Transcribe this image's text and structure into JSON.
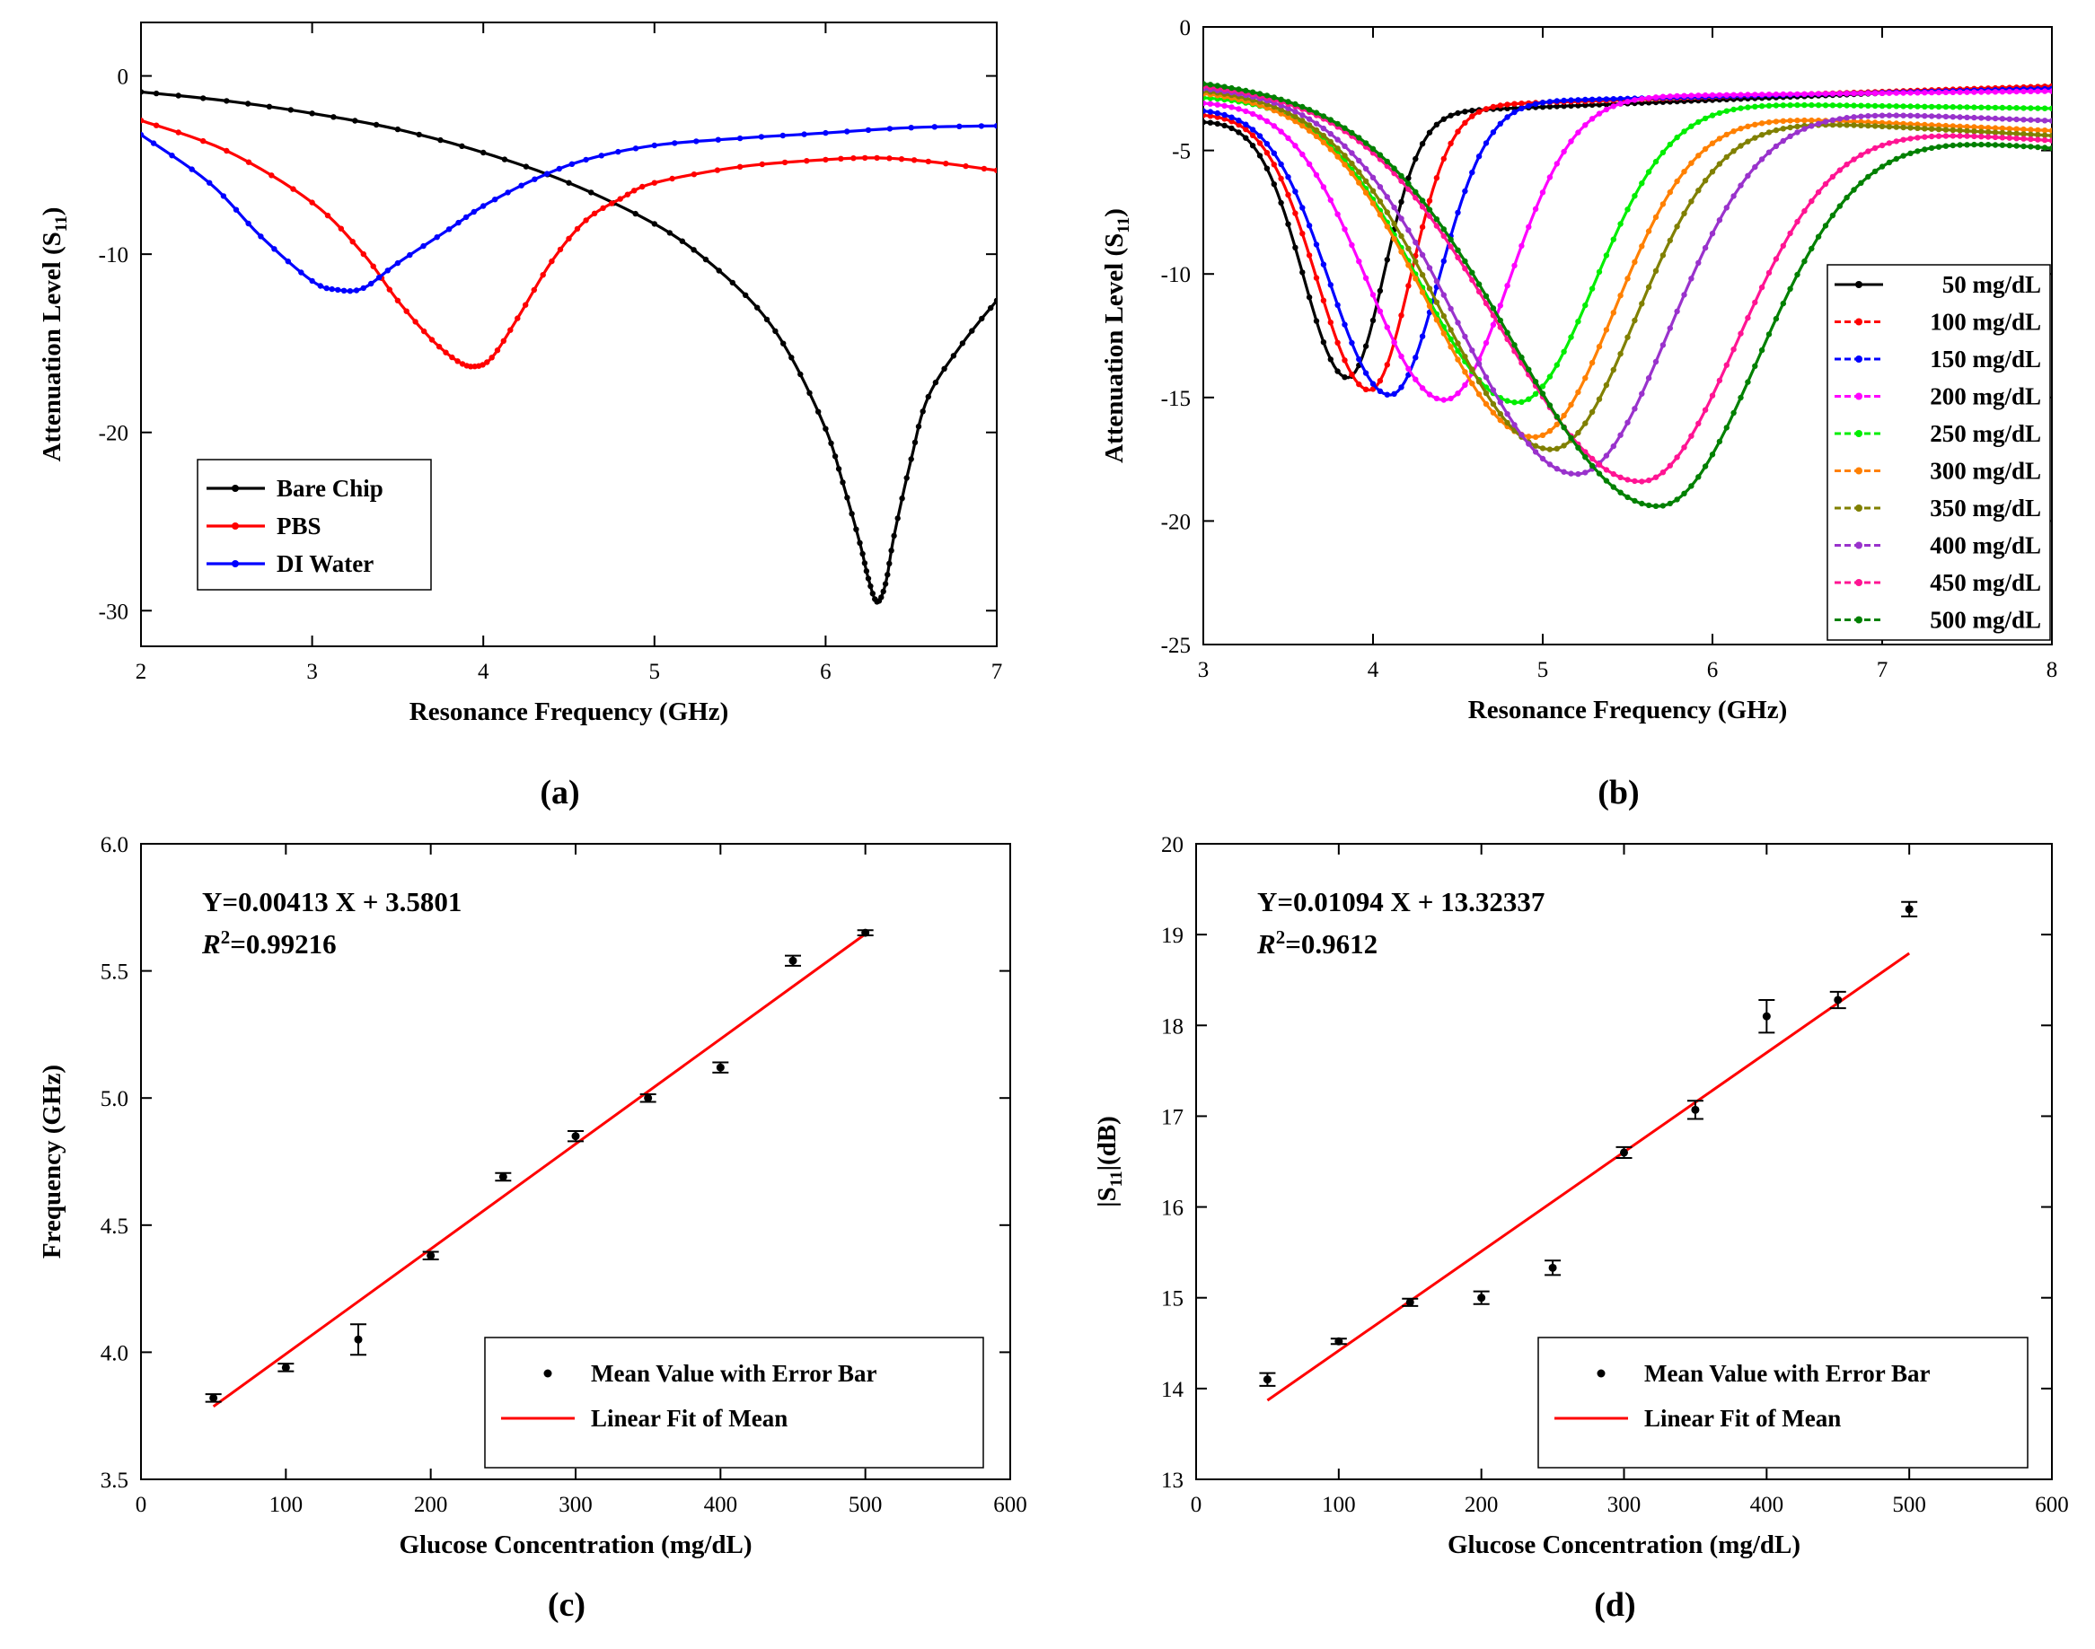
{
  "chart_data": [
    {
      "id": "a",
      "type": "line",
      "panel_label": "(a)",
      "xlabel": "Resonance Frequency (GHz)",
      "ylabel": "Attenuation Level (S",
      "ylabel_sub": "11",
      "ylabel_close": ")",
      "xlim": [
        2,
        7
      ],
      "ylim": [
        -32,
        3
      ],
      "xticks": [
        2,
        3,
        4,
        5,
        6,
        7
      ],
      "yticks": [
        0,
        -10,
        -20,
        -30
      ],
      "legend_position": "bottom-left",
      "series": [
        {
          "name": "Bare Chip",
          "color": "#000000",
          "x": [
            2.0,
            2.5,
            3.0,
            3.5,
            4.0,
            4.5,
            5.0,
            5.3,
            5.6,
            5.8,
            6.0,
            6.1,
            6.2,
            6.25,
            6.3,
            6.35,
            6.4,
            6.5,
            6.6,
            6.8,
            7.0
          ],
          "y": [
            -0.9,
            -1.4,
            -2.1,
            -3.0,
            -4.3,
            -6.0,
            -8.3,
            -10.3,
            -13.0,
            -15.8,
            -19.8,
            -22.8,
            -26.2,
            -28.2,
            -29.5,
            -28.5,
            -25.8,
            -21.5,
            -18.0,
            -15.0,
            -12.6
          ]
        },
        {
          "name": "PBS",
          "color": "#ff0000",
          "x": [
            2.0,
            2.5,
            3.0,
            3.3,
            3.5,
            3.7,
            3.85,
            3.95,
            4.05,
            4.2,
            4.4,
            4.6,
            4.8,
            5.0,
            5.5,
            6.0,
            6.3,
            6.6,
            7.0
          ],
          "y": [
            -2.5,
            -4.2,
            -7.1,
            -10.0,
            -12.6,
            -14.8,
            -16.0,
            -16.3,
            -15.8,
            -13.6,
            -10.4,
            -8.1,
            -6.9,
            -6.0,
            -5.1,
            -4.7,
            -4.6,
            -4.8,
            -5.3
          ]
        },
        {
          "name": "DI Water",
          "color": "#0000ff",
          "x": [
            2.0,
            2.4,
            2.7,
            3.0,
            3.15,
            3.3,
            3.5,
            3.8,
            4.0,
            4.3,
            4.6,
            5.0,
            5.5,
            6.0,
            6.5,
            7.0
          ],
          "y": [
            -3.3,
            -6.0,
            -9.0,
            -11.5,
            -12.0,
            -11.9,
            -10.5,
            -8.6,
            -7.3,
            -5.8,
            -4.7,
            -3.9,
            -3.5,
            -3.2,
            -2.9,
            -2.8
          ]
        }
      ]
    },
    {
      "id": "b",
      "type": "line",
      "panel_label": "(b)",
      "xlabel": "Resonance Frequency (GHz)",
      "ylabel": "Attenuation Level (S",
      "ylabel_sub": "11",
      "ylabel_close": ")",
      "xlim": [
        3,
        8
      ],
      "ylim": [
        -25,
        0
      ],
      "xticks": [
        3,
        4,
        5,
        6,
        7,
        8
      ],
      "yticks": [
        0,
        -5,
        -10,
        -15,
        -20,
        -25
      ],
      "legend_position": "right",
      "series": [
        {
          "name": "50 mg/dL",
          "color": "#000000",
          "dip_x": 3.85,
          "dip_y": -14.2,
          "start_y": -3.8,
          "end_y": -2.4,
          "left_width": 0.55,
          "right_width": 0.45
        },
        {
          "name": "100 mg/dL",
          "color": "#ff0000",
          "dip_x": 3.98,
          "dip_y": -14.7,
          "start_y": -3.5,
          "end_y": -2.4,
          "left_width": 0.65,
          "right_width": 0.5
        },
        {
          "name": "150 mg/dL",
          "color": "#0000ff",
          "dip_x": 4.1,
          "dip_y": -14.9,
          "start_y": -3.3,
          "end_y": -2.5,
          "left_width": 0.75,
          "right_width": 0.6
        },
        {
          "name": "200 mg/dL",
          "color": "#ff00ff",
          "dip_x": 4.42,
          "dip_y": -15.1,
          "start_y": -3.0,
          "end_y": -2.6,
          "left_width": 0.95,
          "right_width": 0.8
        },
        {
          "name": "250 mg/dL",
          "color": "#00ee00",
          "dip_x": 4.85,
          "dip_y": -15.2,
          "start_y": -2.8,
          "end_y": -3.3,
          "left_width": 1.2,
          "right_width": 0.95
        },
        {
          "name": "300 mg/dL",
          "color": "#ff8000",
          "dip_x": 4.95,
          "dip_y": -16.6,
          "start_y": -2.6,
          "end_y": -4.2,
          "left_width": 1.3,
          "right_width": 1.0
        },
        {
          "name": "350 mg/dL",
          "color": "#808000",
          "dip_x": 5.05,
          "dip_y": -17.1,
          "start_y": -2.5,
          "end_y": -4.4,
          "left_width": 1.35,
          "right_width": 1.05
        },
        {
          "name": "400 mg/dL",
          "color": "#9932cc",
          "dip_x": 5.2,
          "dip_y": -18.1,
          "start_y": -2.4,
          "end_y": -3.8,
          "left_width": 1.45,
          "right_width": 1.15
        },
        {
          "name": "450 mg/dL",
          "color": "#ff1493",
          "dip_x": 5.58,
          "dip_y": -18.4,
          "start_y": -2.3,
          "end_y": -4.6,
          "left_width": 1.7,
          "right_width": 1.2
        },
        {
          "name": "500 mg/dL",
          "color": "#008000",
          "dip_x": 5.68,
          "dip_y": -19.4,
          "start_y": -2.2,
          "end_y": -4.9,
          "left_width": 1.75,
          "right_width": 1.25
        }
      ]
    },
    {
      "id": "c",
      "type": "scatter",
      "panel_label": "(c)",
      "xlabel": "Glucose Concentration (mg/dL)",
      "ylabel": "Frequency (GHz)",
      "xlim": [
        0,
        600
      ],
      "ylim": [
        3.5,
        6.0
      ],
      "xticks": [
        0,
        100,
        200,
        300,
        400,
        500,
        600
      ],
      "yticks": [
        3.5,
        4.0,
        4.5,
        5.0,
        5.5,
        6.0
      ],
      "ytick_labels": [
        "3.5",
        "4.0",
        "4.5",
        "5.0",
        "5.5",
        "6.0"
      ],
      "equation": "Y=0.00413 X + 3.5801",
      "r2_label": "R",
      "r2_sup": "2",
      "r2_value": "=0.99216",
      "legend_position": "bottom-right",
      "legend": [
        "Mean Value with Error Bar",
        "Linear Fit of Mean"
      ],
      "fit": {
        "slope": 0.00413,
        "intercept": 3.5801,
        "x_range": [
          50,
          500
        ],
        "color": "#ff0000"
      },
      "points": [
        {
          "x": 50,
          "y": 3.82,
          "err": 0.015
        },
        {
          "x": 100,
          "y": 3.94,
          "err": 0.015
        },
        {
          "x": 150,
          "y": 4.05,
          "err": 0.06
        },
        {
          "x": 200,
          "y": 4.38,
          "err": 0.015
        },
        {
          "x": 250,
          "y": 4.69,
          "err": 0.015
        },
        {
          "x": 300,
          "y": 4.85,
          "err": 0.02
        },
        {
          "x": 350,
          "y": 5.0,
          "err": 0.015
        },
        {
          "x": 400,
          "y": 5.12,
          "err": 0.02
        },
        {
          "x": 450,
          "y": 5.54,
          "err": 0.02
        },
        {
          "x": 500,
          "y": 5.65,
          "err": 0.01
        }
      ]
    },
    {
      "id": "d",
      "type": "scatter",
      "panel_label": "(d)",
      "xlabel": "Glucose Concentration (mg/dL)",
      "ylabel": "|S",
      "ylabel_sub": "11",
      "ylabel_close": "|(dB)",
      "xlim": [
        0,
        600
      ],
      "ylim": [
        13,
        20
      ],
      "xticks": [
        0,
        100,
        200,
        300,
        400,
        500,
        600
      ],
      "yticks": [
        13,
        14,
        15,
        16,
        17,
        18,
        19,
        20
      ],
      "ytick_labels": [
        "13",
        "14",
        "15",
        "16",
        "17",
        "18",
        "19",
        "20"
      ],
      "equation": "Y=0.01094 X + 13.32337",
      "r2_label": "R",
      "r2_sup": "2",
      "r2_value": "=0.9612",
      "legend_position": "bottom-right",
      "legend": [
        "Mean Value with Error Bar",
        "Linear Fit of Mean"
      ],
      "fit": {
        "slope": 0.01094,
        "intercept": 13.32337,
        "x_range": [
          50,
          500
        ],
        "color": "#ff0000"
      },
      "points": [
        {
          "x": 50,
          "y": 14.1,
          "err": 0.07
        },
        {
          "x": 100,
          "y": 14.52,
          "err": 0.03
        },
        {
          "x": 150,
          "y": 14.95,
          "err": 0.04
        },
        {
          "x": 200,
          "y": 15.0,
          "err": 0.07
        },
        {
          "x": 250,
          "y": 15.33,
          "err": 0.08
        },
        {
          "x": 300,
          "y": 16.6,
          "err": 0.06
        },
        {
          "x": 350,
          "y": 17.07,
          "err": 0.1
        },
        {
          "x": 400,
          "y": 18.1,
          "err": 0.18
        },
        {
          "x": 450,
          "y": 18.28,
          "err": 0.09
        },
        {
          "x": 500,
          "y": 19.28,
          "err": 0.08
        }
      ]
    }
  ]
}
